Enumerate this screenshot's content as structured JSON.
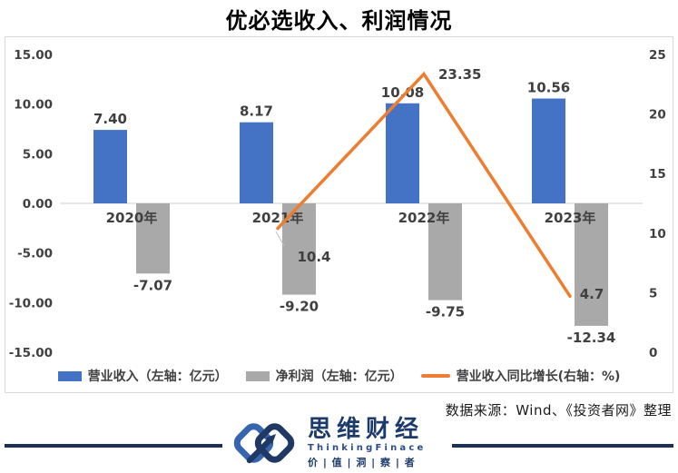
{
  "chart_data": {
    "type": "bar",
    "title": "优必选收入、利润情况",
    "categories": [
      "2020年",
      "2021年",
      "2022年",
      "2023年"
    ],
    "series": [
      {
        "name": "营业收入（左轴：亿元）",
        "type": "bar",
        "axis": "left",
        "color": "#4472C4",
        "values": [
          7.4,
          8.17,
          10.08,
          10.56
        ],
        "labels": [
          "7.40",
          "8.17",
          "10.08",
          "10.56"
        ]
      },
      {
        "name": "净利润（左轴：亿元）",
        "type": "bar",
        "axis": "left",
        "color": "#A9A9A9",
        "values": [
          -7.07,
          -9.2,
          -9.75,
          -12.34
        ],
        "labels": [
          "-7.07",
          "-9.20",
          "-9.75",
          "-12.34"
        ]
      },
      {
        "name": "营业收入同比增长(右轴：%)",
        "type": "line",
        "axis": "right",
        "color": "#ED7D31",
        "values": [
          null,
          10.4,
          23.35,
          4.7
        ],
        "labels": [
          "",
          "10.4",
          "23.35",
          "4.7"
        ]
      }
    ],
    "left_axis": {
      "min": -15,
      "max": 15,
      "ticks": [
        "15.00",
        "10.00",
        "5.00",
        "0.00",
        "-5.00",
        "-10.00",
        "-15.00"
      ]
    },
    "right_axis": {
      "min": 0,
      "max": 25,
      "ticks": [
        "25",
        "20",
        "15",
        "10",
        "5",
        "0"
      ]
    },
    "grid": "zero-line-only",
    "legend_position": "bottom",
    "zero_line_color": "#D6D6D6"
  },
  "footer": {
    "source_text": "数据来源：Wind、《投资者网》整理"
  },
  "logo": {
    "name": "思维财经",
    "subtitle": "ThinkingFinace",
    "tagline": "价 | 值 | 洞 | 察 | 者",
    "navy": "#1C3A6B",
    "blue": "#3565AE"
  }
}
